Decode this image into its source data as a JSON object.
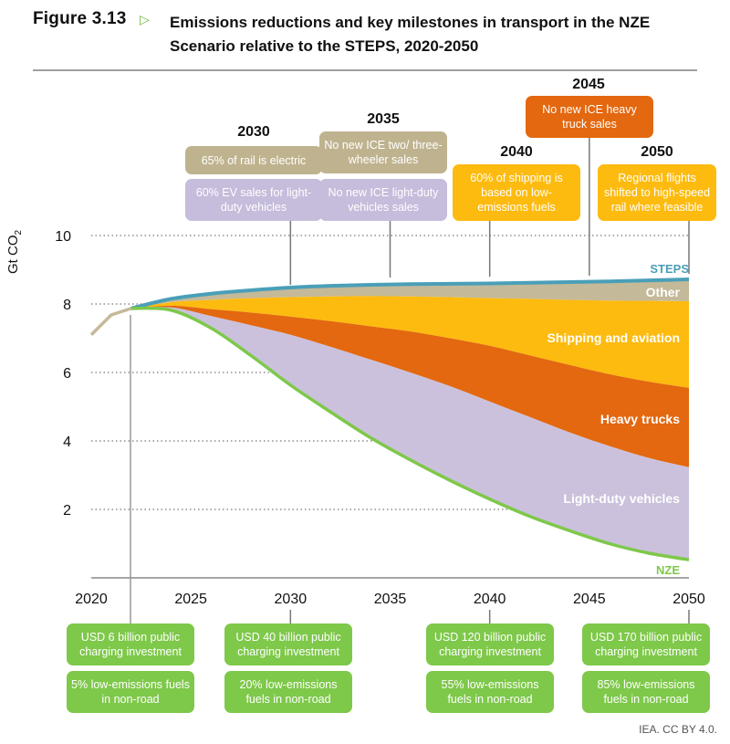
{
  "figure": {
    "label": "Figure 3.13",
    "title_line1": "Emissions reductions and key milestones in transport in the NZE",
    "title_line2": "Scenario relative to the STEPS, 2020-2050",
    "credit": "IEA. CC BY 4.0."
  },
  "colors": {
    "steps": "#4a9fb8",
    "other": "#c4b999",
    "shipping": "#fdbb0f",
    "heavy_trucks": "#e3680f",
    "light_duty": "#cbc1dc",
    "nze": "#7ec84a",
    "history": "#c4b999",
    "green_box": "#7ec84a",
    "tan_box": "#bfb38f",
    "purple_box": "#c6bcdb",
    "yellow_box": "#fdbb0f",
    "orange_box": "#e3680f"
  },
  "chart_data": {
    "type": "area",
    "title": "Emissions reductions and key milestones in transport in the NZE Scenario relative to the STEPS, 2020-2050",
    "xlabel": "",
    "ylabel": "Gt CO2",
    "xlim": [
      2020,
      2050
    ],
    "ylim": [
      0,
      10
    ],
    "y_ticks": [
      2,
      4,
      6,
      8,
      10
    ],
    "x_ticks": [
      2020,
      2025,
      2030,
      2035,
      2040,
      2045,
      2050
    ],
    "grid": "horizontal dotted",
    "history": {
      "name": "Historical",
      "x": [
        2020,
        2021,
        2022
      ],
      "values": [
        7.1,
        7.68,
        7.87
      ]
    },
    "x": [
      2022,
      2024,
      2026,
      2028,
      2030,
      2032,
      2034,
      2036,
      2038,
      2040,
      2042,
      2044,
      2046,
      2048,
      2050
    ],
    "boundaries": {
      "STEPS": [
        7.87,
        8.15,
        8.3,
        8.4,
        8.48,
        8.53,
        8.56,
        8.58,
        8.59,
        8.6,
        8.62,
        8.64,
        8.66,
        8.69,
        8.72
      ],
      "Other_top_of_shipping": [
        7.87,
        8.05,
        8.12,
        8.17,
        8.2,
        8.22,
        8.23,
        8.22,
        8.2,
        8.17,
        8.15,
        8.12,
        8.1,
        8.09,
        8.08
      ],
      "Shipping_top_of_heavy_trucks": [
        7.87,
        7.95,
        7.85,
        7.75,
        7.63,
        7.5,
        7.35,
        7.2,
        7.0,
        6.78,
        6.5,
        6.22,
        5.95,
        5.73,
        5.55
      ],
      "HeavyTrucks_top_of_light_duty": [
        7.87,
        7.9,
        7.65,
        7.38,
        7.1,
        6.75,
        6.38,
        6.0,
        5.6,
        5.15,
        4.7,
        4.25,
        3.85,
        3.5,
        3.23
      ],
      "NZE": [
        7.87,
        7.82,
        7.3,
        6.5,
        5.63,
        4.85,
        4.1,
        3.45,
        2.85,
        2.3,
        1.8,
        1.38,
        1.0,
        0.72,
        0.53
      ]
    },
    "series": [
      {
        "name": "Other",
        "label": "Other"
      },
      {
        "name": "Shipping and aviation",
        "label": "Shipping and aviation"
      },
      {
        "name": "Heavy trucks",
        "label": "Heavy trucks"
      },
      {
        "name": "Light-duty vehicles",
        "label": "Light-duty vehicles"
      }
    ],
    "line_labels": {
      "steps": "STEPS",
      "nze": "NZE"
    }
  },
  "milestones_top": [
    {
      "year": "2030",
      "boxes": [
        "65% of rail is electric",
        "60% EV sales for light-duty vehicles"
      ]
    },
    {
      "year": "2035",
      "boxes": [
        "No new ICE two/ three-wheeler sales",
        "No new ICE light-duty vehicles sales"
      ]
    },
    {
      "year": "2040",
      "boxes": [
        "60% of shipping is based on low-emissions fuels"
      ]
    },
    {
      "year": "2045",
      "boxes": [
        "No new ICE heavy truck sales"
      ]
    },
    {
      "year": "2050",
      "boxes": [
        "Regional flights shifted to high-speed rail where feasible"
      ]
    }
  ],
  "milestones_bottom": [
    {
      "year": "2022",
      "boxes": [
        "USD 6 billion public charging investment",
        "5% low-emissions fuels in non-road"
      ]
    },
    {
      "year": "2030",
      "boxes": [
        "USD 40 billion public charging investment",
        "20% low-emissions fuels in non-road"
      ]
    },
    {
      "year": "2040",
      "boxes": [
        "USD 120 billion public charging investment",
        "55% low-emissions fuels in non-road"
      ]
    },
    {
      "year": "2050",
      "boxes": [
        "USD 170 billion public charging investment",
        "85% low-emissions fuels in non-road"
      ]
    }
  ]
}
